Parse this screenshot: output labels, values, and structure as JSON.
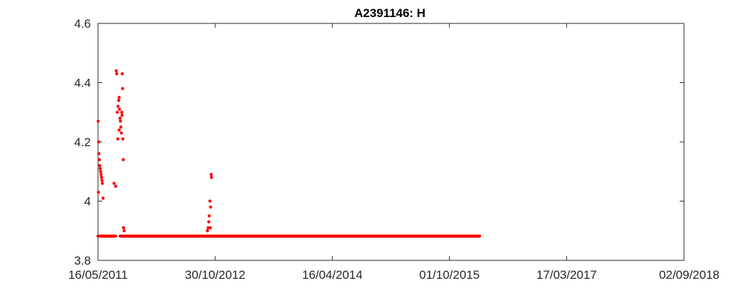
{
  "chart_data": {
    "type": "scatter",
    "title": "A2391146: H",
    "xlabel": "",
    "ylabel": "",
    "x_axis": {
      "kind": "date",
      "range": [
        "2011-05-16",
        "2018-09-02"
      ],
      "ticks": [
        "2011-05-16",
        "2012-10-30",
        "2014-04-16",
        "2015-10-01",
        "2017-03-17",
        "2018-09-02"
      ],
      "tick_labels": [
        "16/05/2011",
        "30/10/2012",
        "16/04/2014",
        "01/10/2015",
        "17/03/2017",
        "02/09/2018"
      ]
    },
    "y_axis": {
      "range": [
        3.8,
        4.6
      ],
      "ticks": [
        3.8,
        4.0,
        4.2,
        4.4,
        4.6
      ],
      "tick_labels": [
        "3.8",
        "4",
        "4.2",
        "4.4",
        "4.6"
      ]
    },
    "grid": true,
    "marker_color": "#ff0000",
    "series": [
      {
        "points": [
          [
            "2011-05-17",
            4.27
          ],
          [
            "2011-05-18",
            4.03
          ],
          [
            "2011-05-19",
            4.2
          ],
          [
            "2011-05-20",
            4.16
          ],
          [
            "2011-05-22",
            4.14
          ],
          [
            "2011-05-24",
            4.12
          ],
          [
            "2011-05-26",
            4.11
          ],
          [
            "2011-05-28",
            4.1
          ],
          [
            "2011-05-30",
            4.09
          ],
          [
            "2011-06-01",
            4.08
          ],
          [
            "2011-06-03",
            4.07
          ],
          [
            "2011-06-05",
            4.06
          ],
          [
            "2011-06-08",
            4.01
          ],
          [
            "2011-07-28",
            4.06
          ],
          [
            "2011-08-04",
            4.05
          ],
          [
            "2011-08-07",
            4.44
          ],
          [
            "2011-08-09",
            4.43
          ],
          [
            "2011-08-12",
            4.3
          ],
          [
            "2011-08-15",
            4.32
          ],
          [
            "2011-08-18",
            4.34
          ],
          [
            "2011-08-20",
            4.35
          ],
          [
            "2011-08-22",
            4.31
          ],
          [
            "2011-08-24",
            4.28
          ],
          [
            "2011-08-26",
            4.27
          ],
          [
            "2011-08-28",
            4.25
          ],
          [
            "2011-08-30",
            4.23
          ],
          [
            "2011-08-20",
            4.24
          ],
          [
            "2011-08-14",
            4.21
          ],
          [
            "2011-09-01",
            4.3
          ],
          [
            "2011-09-02",
            4.29
          ],
          [
            "2011-09-03",
            4.43
          ],
          [
            "2011-09-05",
            4.38
          ],
          [
            "2011-09-06",
            4.21
          ],
          [
            "2011-09-08",
            4.14
          ],
          [
            "2011-09-09",
            3.91
          ],
          [
            "2011-09-12",
            3.9
          ],
          [
            "2012-09-25",
            3.9
          ],
          [
            "2012-09-28",
            3.91
          ],
          [
            "2012-10-01",
            3.93
          ],
          [
            "2012-10-03",
            3.95
          ],
          [
            "2012-10-06",
            4.0
          ],
          [
            "2012-10-09",
            3.98
          ],
          [
            "2012-10-12",
            4.09
          ],
          [
            "2012-10-13",
            4.08
          ],
          [
            "2012-10-08",
            3.91
          ]
        ],
        "baseline_run": {
          "y": 3.882,
          "segments": [
            [
              "2011-05-16",
              "2011-05-16"
            ],
            [
              "2011-05-25",
              "2011-08-04"
            ],
            [
              "2011-08-25",
              "2012-09-27"
            ],
            [
              "2012-09-27",
              "2016-02-15"
            ]
          ]
        }
      }
    ]
  }
}
